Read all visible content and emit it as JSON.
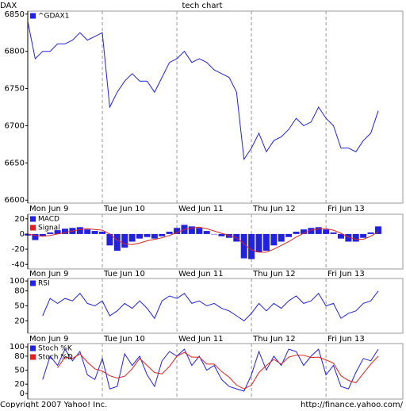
{
  "chart_data": [
    {
      "type": "line",
      "title": "tech chart",
      "ylabel": "DAX",
      "x": [
        0,
        0.1,
        0.2,
        0.3,
        0.4,
        0.5,
        0.6,
        0.7,
        0.8,
        0.9,
        1,
        1.1,
        1.2,
        1.3,
        1.4,
        1.5,
        1.6,
        1.7,
        1.8,
        1.9,
        2,
        2.1,
        2.2,
        2.3,
        2.4,
        2.5,
        2.6,
        2.7,
        2.8,
        2.9,
        3,
        3.1,
        3.2,
        3.3,
        3.4,
        3.5,
        3.6,
        3.7,
        3.8,
        3.9,
        4,
        4.1,
        4.2,
        4.3,
        4.4,
        4.5,
        4.6,
        4.7
      ],
      "series": [
        {
          "name": "^GDAX1",
          "color": "#2222dd",
          "values": [
            6840,
            6790,
            6800,
            6800,
            6810,
            6810,
            6815,
            6825,
            6815,
            6820,
            6825,
            6725,
            6745,
            6760,
            6770,
            6760,
            6760,
            6745,
            6765,
            6785,
            6790,
            6800,
            6785,
            6790,
            6785,
            6775,
            6770,
            6765,
            6745,
            6655,
            6670,
            6690,
            6665,
            6680,
            6685,
            6695,
            6710,
            6700,
            6705,
            6725,
            6710,
            6700,
            6670,
            6670,
            6665,
            6680,
            6690,
            6720
          ]
        }
      ],
      "xlim": [
        0,
        5.03
      ],
      "xticks": [
        {
          "value": 0,
          "label": "Mon Jun 9"
        },
        {
          "value": 1,
          "label": "Tue Jun 10"
        },
        {
          "value": 2,
          "label": "Wed Jun 11"
        },
        {
          "value": 3,
          "label": "Thu Jun 12"
        },
        {
          "value": 4,
          "label": "Fri Jun 13"
        }
      ],
      "ylim": [
        6596,
        6854
      ],
      "yticks": [
        6600,
        6650,
        6700,
        6750,
        6800,
        6850
      ],
      "grid": "x"
    },
    {
      "type": "bar",
      "x": [
        0,
        0.1,
        0.2,
        0.3,
        0.4,
        0.5,
        0.6,
        0.7,
        0.8,
        0.9,
        1,
        1.1,
        1.2,
        1.3,
        1.4,
        1.5,
        1.6,
        1.7,
        1.8,
        1.9,
        2,
        2.1,
        2.2,
        2.3,
        2.4,
        2.5,
        2.6,
        2.7,
        2.8,
        2.9,
        3,
        3.1,
        3.2,
        3.3,
        3.4,
        3.5,
        3.6,
        3.7,
        3.8,
        3.9,
        4,
        4.1,
        4.2,
        4.3,
        4.4,
        4.5,
        4.6,
        4.7
      ],
      "series": [
        {
          "name": "MACD",
          "color": "#2222dd",
          "style": "bar",
          "values": [
            -2,
            -8,
            -3,
            2,
            5,
            7,
            8,
            9,
            6,
            4,
            3,
            -15,
            -22,
            -18,
            -10,
            -6,
            -4,
            -6,
            -3,
            3,
            8,
            12,
            10,
            8,
            4,
            0,
            -3,
            -5,
            -10,
            -32,
            -33,
            -24,
            -22,
            -15,
            -10,
            -4,
            3,
            6,
            8,
            9,
            6,
            2,
            -6,
            -10,
            -10,
            -5,
            2,
            10
          ]
        },
        {
          "name": "Signal",
          "color": "#dd2222",
          "style": "line",
          "values": [
            0,
            -2,
            -3,
            -2,
            0,
            2,
            4,
            6,
            7,
            6,
            5,
            0,
            -8,
            -13,
            -14,
            -12,
            -9,
            -7,
            -5,
            -2,
            2,
            6,
            8,
            9,
            7,
            4,
            1,
            -2,
            -5,
            -13,
            -21,
            -24,
            -24,
            -20,
            -15,
            -10,
            -4,
            1,
            5,
            7,
            7,
            5,
            1,
            -4,
            -7,
            -7,
            -3,
            3
          ]
        }
      ],
      "xlim": [
        0,
        5.03
      ],
      "xticks": [
        {
          "value": 0,
          "label": "Mon Jun 9"
        },
        {
          "value": 1,
          "label": "Tue Jun 10"
        },
        {
          "value": 2,
          "label": "Wed Jun 11"
        },
        {
          "value": 3,
          "label": "Thu Jun 12"
        },
        {
          "value": 4,
          "label": "Fri Jun 13"
        }
      ],
      "ylim": [
        -46,
        26
      ],
      "yticks": [
        -40,
        -20,
        0,
        20
      ],
      "grid": "x"
    },
    {
      "type": "line",
      "x": [
        0,
        0.1,
        0.2,
        0.3,
        0.4,
        0.5,
        0.6,
        0.7,
        0.8,
        0.9,
        1,
        1.1,
        1.2,
        1.3,
        1.4,
        1.5,
        1.6,
        1.7,
        1.8,
        1.9,
        2,
        2.1,
        2.2,
        2.3,
        2.4,
        2.5,
        2.6,
        2.7,
        2.8,
        2.9,
        3,
        3.1,
        3.2,
        3.3,
        3.4,
        3.5,
        3.6,
        3.7,
        3.8,
        3.9,
        4,
        4.1,
        4.2,
        4.3,
        4.4,
        4.5,
        4.6,
        4.7
      ],
      "series": [
        {
          "name": "RSI",
          "color": "#2222dd",
          "values": [
            null,
            null,
            30,
            65,
            55,
            65,
            60,
            75,
            55,
            50,
            60,
            30,
            40,
            55,
            45,
            60,
            45,
            25,
            60,
            70,
            65,
            75,
            55,
            60,
            50,
            55,
            45,
            40,
            30,
            20,
            35,
            55,
            40,
            55,
            45,
            60,
            70,
            55,
            60,
            75,
            50,
            55,
            25,
            35,
            40,
            55,
            60,
            80
          ]
        }
      ],
      "xlim": [
        0,
        5.03
      ],
      "xticks": [
        {
          "value": 0,
          "label": "Mon Jun 9"
        },
        {
          "value": 1,
          "label": "Tue Jun 10"
        },
        {
          "value": 2,
          "label": "Wed Jun 11"
        },
        {
          "value": 3,
          "label": "Thu Jun 12"
        },
        {
          "value": 4,
          "label": "Fri Jun 13"
        }
      ],
      "ylim": [
        -5,
        105
      ],
      "yticks": [
        20,
        50,
        80,
        100
      ],
      "grid": "x"
    },
    {
      "type": "line",
      "x": [
        0,
        0.1,
        0.2,
        0.3,
        0.4,
        0.5,
        0.6,
        0.7,
        0.8,
        0.9,
        1,
        1.1,
        1.2,
        1.3,
        1.4,
        1.5,
        1.6,
        1.7,
        1.8,
        1.9,
        2,
        2.1,
        2.2,
        2.3,
        2.4,
        2.5,
        2.6,
        2.7,
        2.8,
        2.9,
        3,
        3.1,
        3.2,
        3.3,
        3.4,
        3.5,
        3.6,
        3.7,
        3.8,
        3.9,
        4,
        4.1,
        4.2,
        4.3,
        4.4,
        4.5,
        4.6,
        4.7
      ],
      "series": [
        {
          "name": "Stoch %K",
          "color": "#2222dd",
          "values": [
            null,
            null,
            30,
            80,
            60,
            95,
            70,
            90,
            40,
            30,
            75,
            10,
            15,
            85,
            60,
            80,
            40,
            15,
            70,
            90,
            80,
            95,
            60,
            80,
            50,
            60,
            30,
            15,
            10,
            5,
            40,
            90,
            50,
            80,
            60,
            95,
            90,
            60,
            80,
            95,
            40,
            60,
            15,
            10,
            45,
            75,
            70,
            95
          ]
        },
        {
          "name": "Stoch %D",
          "color": "#dd2222",
          "values": [
            null,
            null,
            null,
            null,
            55,
            78,
            75,
            85,
            67,
            53,
            48,
            38,
            33,
            37,
            53,
            75,
            60,
            45,
            42,
            58,
            80,
            88,
            78,
            78,
            63,
            63,
            47,
            35,
            18,
            10,
            18,
            45,
            60,
            73,
            63,
            78,
            82,
            82,
            77,
            78,
            72,
            65,
            38,
            28,
            23,
            43,
            63,
            80
          ]
        }
      ],
      "xlim": [
        0,
        5.03
      ],
      "xticks": [
        {
          "value": 0,
          "label": "Mon Jun 9"
        },
        {
          "value": 1,
          "label": "Tue Jun 10"
        },
        {
          "value": 2,
          "label": "Wed Jun 11"
        },
        {
          "value": 3,
          "label": "Thu Jun 12"
        },
        {
          "value": 4,
          "label": "Fri Jun 13"
        }
      ],
      "ylim": [
        -12,
        107
      ],
      "yticks": [
        0,
        20,
        50,
        80,
        100
      ],
      "grid": "x"
    }
  ],
  "footer": {
    "copyright": "Copyright 2007 Yahoo! Inc.",
    "url": "http://finance.yahoo.com/"
  }
}
